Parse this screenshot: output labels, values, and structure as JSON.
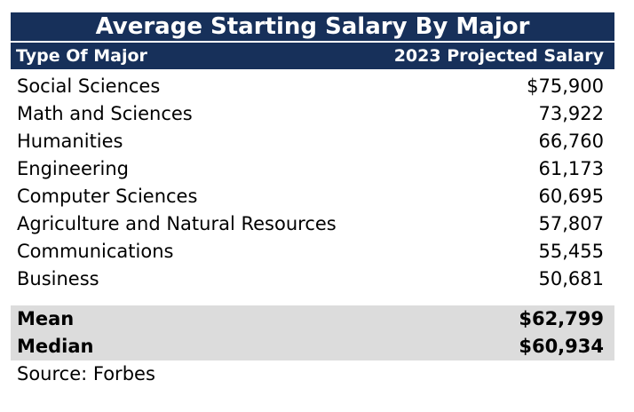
{
  "title": "Average Starting Salary By Major",
  "columns": {
    "major": "Type Of Major",
    "salary": "2023 Projected Salary"
  },
  "rows": [
    {
      "major": "Social Sciences",
      "salary": "$75,900"
    },
    {
      "major": "Math and Sciences",
      "salary": "73,922"
    },
    {
      "major": "Humanities",
      "salary": "66,760"
    },
    {
      "major": "Engineering",
      "salary": "61,173"
    },
    {
      "major": "Computer Sciences",
      "salary": "60,695"
    },
    {
      "major": "Agriculture and Natural Resources",
      "salary": "57,807"
    },
    {
      "major": "Communications",
      "salary": "55,455"
    },
    {
      "major": "Business",
      "salary": "50,681"
    }
  ],
  "summary": [
    {
      "label": "Mean",
      "value": "$62,799"
    },
    {
      "label": "Median",
      "value": "$60,934"
    }
  ],
  "source": "Source: Forbes",
  "colors": {
    "header_bg": "#17305a",
    "header_text": "#ffffff",
    "summary_bg": "#dcdcdc"
  }
}
